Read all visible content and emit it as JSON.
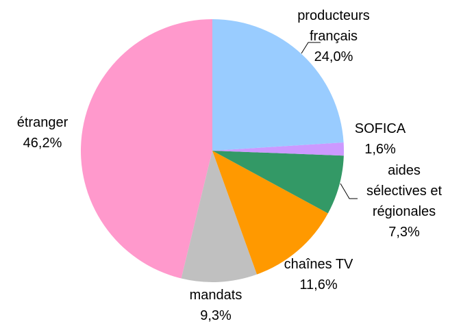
{
  "chart_data": {
    "type": "pie",
    "categories": [
      "producteurs français",
      "SOFICA",
      "aides sélectives et régionales",
      "chaînes TV",
      "mandats",
      "étranger"
    ],
    "values": [
      24.0,
      1.6,
      7.3,
      11.6,
      9.3,
      46.2
    ],
    "value_labels": [
      "24,0%",
      "1,6%",
      "7,3%",
      "11,6%",
      "9,3%",
      "46,2%"
    ],
    "colors": [
      "#99ccff",
      "#cc99ff",
      "#339966",
      "#ff9900",
      "#c0c0c0",
      "#ff99cc"
    ]
  }
}
